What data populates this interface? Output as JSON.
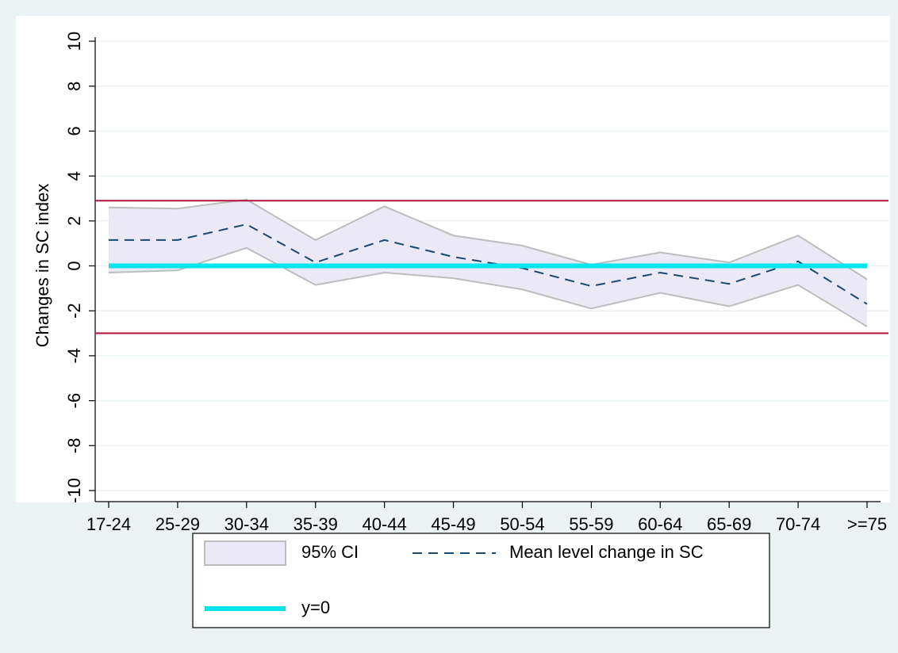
{
  "chart_data": {
    "type": "line",
    "y_label": "Changes in SC index",
    "categories": [
      "17-24",
      "25-29",
      "30-34",
      "35-39",
      "40-44",
      "45-49",
      "50-54",
      "55-59",
      "60-64",
      "65-69",
      "70-74",
      ">=75"
    ],
    "ylim": [
      -10,
      10
    ],
    "yticks": [
      -10,
      -8,
      -6,
      -4,
      -2,
      0,
      2,
      4,
      6,
      8,
      10
    ],
    "grid": true,
    "series": [
      {
        "name": "95% CI",
        "type": "band",
        "color": "#ebe9f5",
        "upper": [
          2.6,
          2.55,
          2.95,
          1.15,
          2.65,
          1.35,
          0.9,
          0.05,
          0.6,
          0.15,
          1.35,
          -0.6
        ],
        "lower": [
          -0.3,
          -0.2,
          0.8,
          -0.85,
          -0.3,
          -0.55,
          -1.05,
          -1.9,
          -1.2,
          -1.8,
          -0.85,
          -2.7
        ]
      },
      {
        "name": "Mean level change in SC",
        "type": "dashed",
        "color": "#1a476f",
        "values": [
          1.15,
          1.15,
          1.85,
          0.15,
          1.15,
          0.4,
          -0.1,
          -0.9,
          -0.3,
          -0.8,
          0.2,
          -1.7
        ]
      },
      {
        "name": "y=0",
        "type": "solid",
        "color": "#00e5ee",
        "values": [
          0,
          0,
          0,
          0,
          0,
          0,
          0,
          0,
          0,
          0,
          0,
          0
        ]
      }
    ],
    "reference_lines": [
      {
        "value": 2.9,
        "color": "#b0103a"
      },
      {
        "value": -3.0,
        "color": "#b0103a"
      }
    ]
  }
}
